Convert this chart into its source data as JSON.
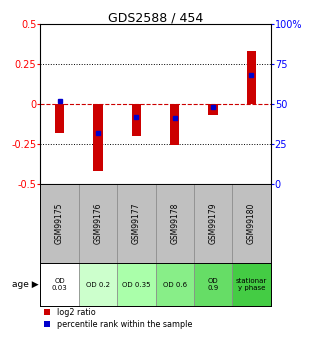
{
  "title": "GDS2588 / 454",
  "samples": [
    "GSM99175",
    "GSM99176",
    "GSM99177",
    "GSM99178",
    "GSM99179",
    "GSM99180"
  ],
  "log2_ratios": [
    -0.18,
    -0.42,
    -0.2,
    -0.26,
    -0.07,
    0.33
  ],
  "percentile_ranks": [
    0.52,
    0.32,
    0.42,
    0.41,
    0.48,
    0.68
  ],
  "age_labels": [
    "OD\n0.03",
    "OD 0.2",
    "OD 0.35",
    "OD 0.6",
    "OD\n0.9",
    "stationar\ny phase"
  ],
  "age_colors": [
    "#ffffff",
    "#ccffcc",
    "#aaffaa",
    "#88ee88",
    "#66dd66",
    "#44cc44"
  ],
  "bar_color": "#cc0000",
  "dot_color": "#0000cc",
  "ylim": [
    -0.5,
    0.5
  ],
  "yticks_left": [
    -0.5,
    -0.25,
    0,
    0.25,
    0.5
  ],
  "yticks_right_labels": [
    "0",
    "25",
    "50",
    "75",
    "100%"
  ],
  "grid_color": "#000000",
  "zero_line_color": "#cc0000",
  "table_header_color": "#c0c0c0",
  "bar_width": 0.25
}
